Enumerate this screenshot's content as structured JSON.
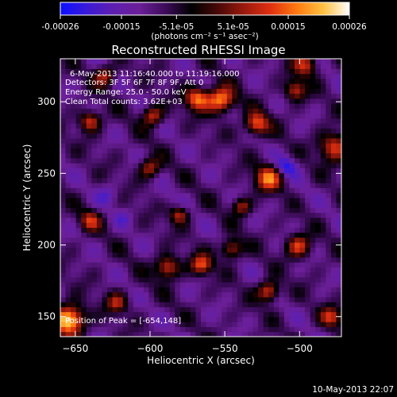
{
  "chart_data": {
    "type": "heatmap",
    "title": "Reconstructed RHESSI Image",
    "xlabel": "Heliocentric X (arcsec)",
    "ylabel": "Heliocentric Y (arcsec)",
    "xlim": [
      -660,
      -472
    ],
    "ylim": [
      136,
      330
    ],
    "xticks": [
      -650,
      -600,
      -550,
      -500
    ],
    "yticks": [
      150,
      200,
      250,
      300
    ],
    "colorbar": {
      "min": -0.00026,
      "max": 0.00026,
      "ticks": [
        "-0.00026",
        "-0.00015",
        "-5.1e-05",
        "5.1e-05",
        "0.00015",
        "0.00026"
      ],
      "units_label": "(photons cm⁻² s⁻¹ asec⁻²)",
      "colors": [
        "#0a10ff",
        "#3a1ad8",
        "#5e1fb0",
        "#6b1f98",
        "#3d0c5a",
        "#000000",
        "#4a0808",
        "#9a1a0c",
        "#e03010",
        "#ff7a10",
        "#ffc040",
        "#ffffff"
      ]
    },
    "annotations": [
      "6-May-2013 11:16:40.000 to 11:19:16.000",
      "Detectors: 3F 5F 6F 7F 8F 9F, Att 0",
      "Energy Range: 25.0 - 50.0 keV",
      "Clean    Total counts: 3.62E+03"
    ],
    "peak_label": "Position of Peak = [-654,148]",
    "peak": [
      -654,
      148
    ],
    "hotspots": [
      {
        "x": -654,
        "y": 148,
        "v": 0.00026,
        "r": 10
      },
      {
        "x": -552,
        "y": 303,
        "v": 0.00019,
        "r": 9
      },
      {
        "x": -568,
        "y": 304,
        "v": 0.00016,
        "r": 8
      },
      {
        "x": -528,
        "y": 286,
        "v": 0.00015,
        "r": 8
      },
      {
        "x": -520,
        "y": 248,
        "v": 0.00015,
        "r": 9
      },
      {
        "x": -476,
        "y": 270,
        "v": 0.00013,
        "r": 10
      },
      {
        "x": -520,
        "y": 168,
        "v": 0.00014,
        "r": 7
      },
      {
        "x": -588,
        "y": 185,
        "v": 0.00013,
        "r": 8
      },
      {
        "x": -565,
        "y": 187,
        "v": 0.00013,
        "r": 7
      },
      {
        "x": -545,
        "y": 198,
        "v": 0.00011,
        "r": 7
      },
      {
        "x": -500,
        "y": 200,
        "v": 0.00012,
        "r": 8
      },
      {
        "x": -478,
        "y": 150,
        "v": 0.0001,
        "r": 7
      },
      {
        "x": -640,
        "y": 288,
        "v": 0.00012,
        "r": 7
      },
      {
        "x": -598,
        "y": 292,
        "v": 0.00011,
        "r": 7
      },
      {
        "x": -600,
        "y": 255,
        "v": 9e-05,
        "r": 7
      },
      {
        "x": -502,
        "y": 310,
        "v": 0.0001,
        "r": 7
      },
      {
        "x": -580,
        "y": 222,
        "v": 9e-05,
        "r": 6
      },
      {
        "x": -640,
        "y": 218,
        "v": 8e-05,
        "r": 7
      },
      {
        "x": -538,
        "y": 228,
        "v": 8e-05,
        "r": 6
      },
      {
        "x": -630,
        "y": 320,
        "v": 9e-05,
        "r": 7
      },
      {
        "x": -495,
        "y": 328,
        "v": 0.0001,
        "r": 8
      },
      {
        "x": -622,
        "y": 160,
        "v": 7e-05,
        "r": 7
      },
      {
        "x": -508,
        "y": 256,
        "v": -0.00022,
        "r": 7
      },
      {
        "x": -628,
        "y": 236,
        "v": -0.00016,
        "r": 7
      },
      {
        "x": -618,
        "y": 220,
        "v": -0.00014,
        "r": 6
      },
      {
        "x": -590,
        "y": 235,
        "v": -0.00012,
        "r": 6
      },
      {
        "x": -555,
        "y": 268,
        "v": -0.00011,
        "r": 6
      },
      {
        "x": -498,
        "y": 236,
        "v": -0.0001,
        "r": 6
      },
      {
        "x": -560,
        "y": 160,
        "v": -9e-05,
        "r": 7
      },
      {
        "x": -605,
        "y": 170,
        "v": -8e-05,
        "r": 6
      }
    ]
  },
  "footer_timestamp": "10-May-2013 22:07"
}
